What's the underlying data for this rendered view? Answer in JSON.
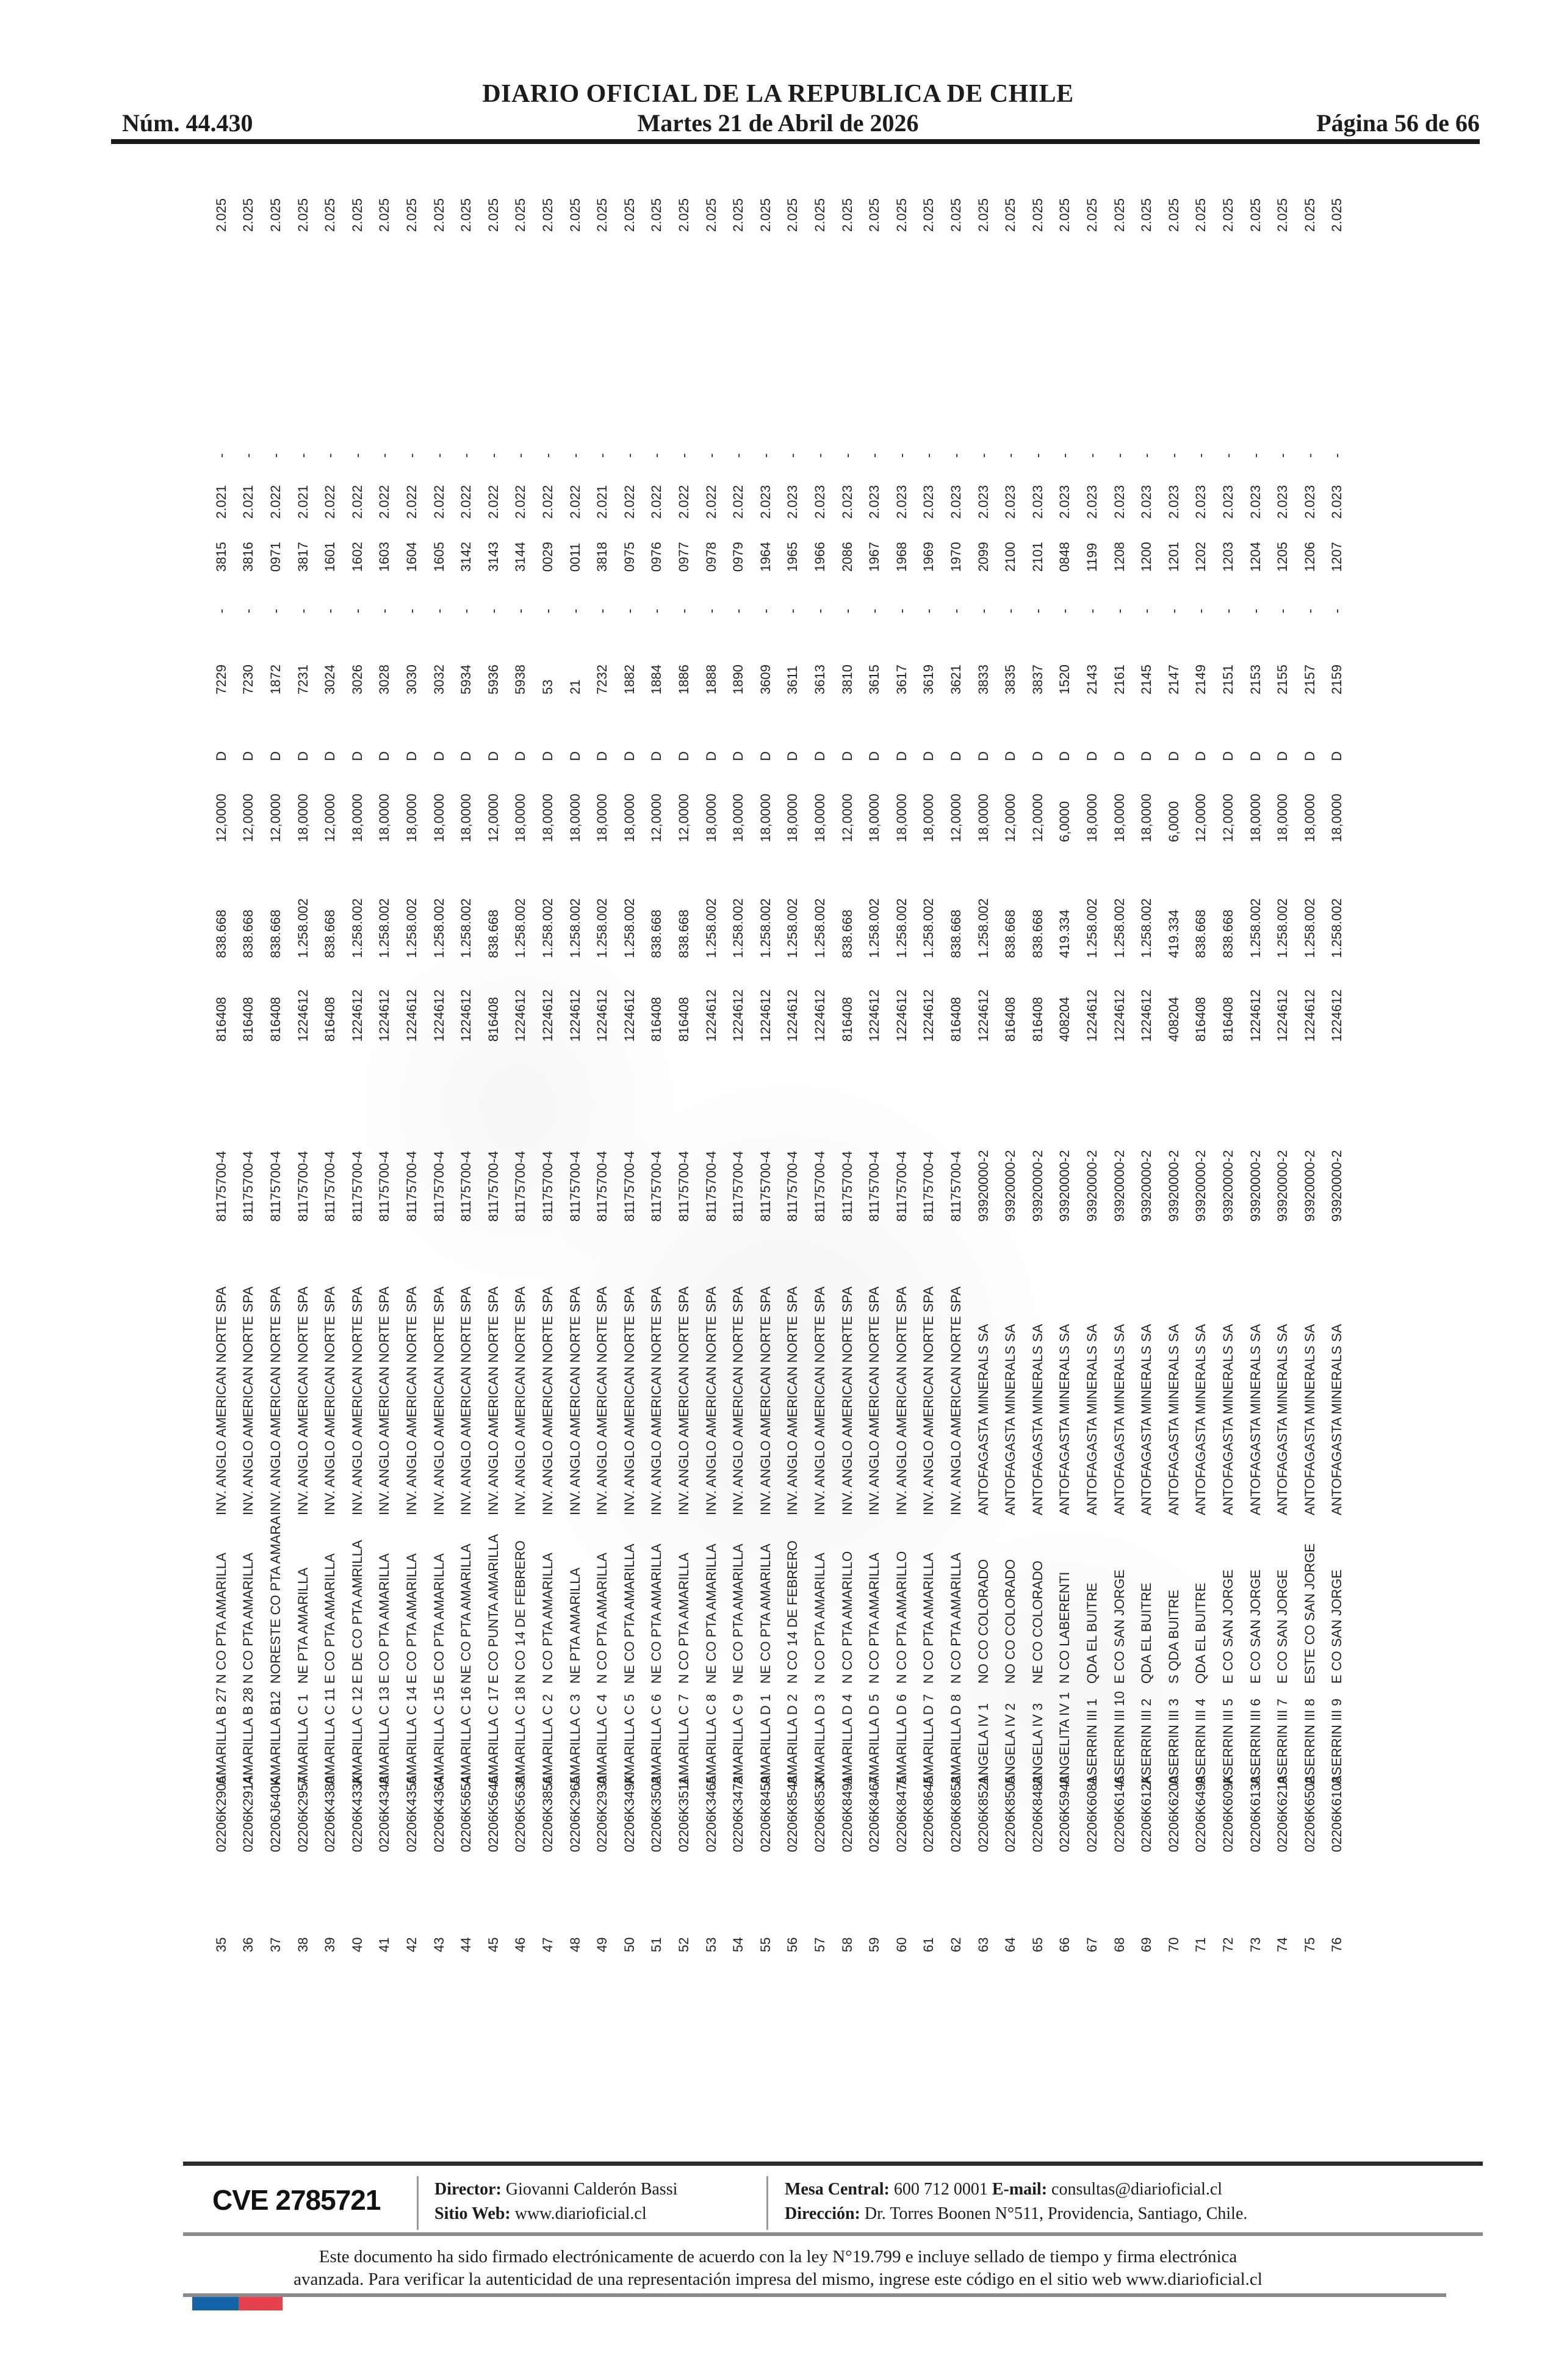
{
  "header": {
    "issue": "Núm. 44.430",
    "title": "DIARIO OFICIAL DE LA REPUBLICA DE CHILE",
    "date": "Martes 21 de Abril de 2026",
    "page": "Página 56 de 66"
  },
  "table": {
    "columns": [
      "n",
      "rol",
      "nombre",
      "ubicacion",
      "titular",
      "rut",
      "num",
      "patente",
      "ha",
      "d",
      "fojas",
      "dash1",
      "numero",
      "anio",
      "dash2",
      "final"
    ],
    "companies": {
      "anglo": {
        "name": "INV. ANGLO AMERICAN NORTE SPA",
        "rut": "81175700-4"
      },
      "antofagasta": {
        "name": "ANTOFAGASTA MINERALS SA",
        "rut": "93920000-2"
      }
    },
    "rows": [
      [
        "35",
        "02206K2906",
        "AMARILLA B 27",
        "N CO PTA AMARILLA",
        "INV. ANGLO AMERICAN NORTE SPA",
        "81175700-4",
        "816408",
        "838.668",
        "12,0000",
        "D",
        "7229",
        "-",
        "3815",
        "2.021",
        "-",
        "2.025"
      ],
      [
        "36",
        "02206K2914",
        "AMARILLA B 28",
        "N CO PTA AMARILLA",
        "INV. ANGLO AMERICAN NORTE SPA",
        "81175700-4",
        "816408",
        "838.668",
        "12,0000",
        "D",
        "7230",
        "-",
        "3816",
        "2.021",
        "-",
        "2.025"
      ],
      [
        "37",
        "02206J640K",
        "AMARILLA B12",
        "NORESTE CO PTA AMARA",
        "INV. ANGLO AMERICAN NORTE SPA",
        "81175700-4",
        "816408",
        "838.668",
        "12,0000",
        "D",
        "1872",
        "-",
        "0971",
        "2.022",
        "-",
        "2.025"
      ],
      [
        "38",
        "02206K2957",
        "AMARILLA C 1",
        "NE PTA AMARILLA",
        "INV. ANGLO AMERICAN NORTE SPA",
        "81175700-4",
        "1224612",
        "1.258.002",
        "18,0000",
        "D",
        "7231",
        "-",
        "3817",
        "2.021",
        "-",
        "2.025"
      ],
      [
        "39",
        "02206K4380",
        "AMARILLA C 11",
        "E CO PTA AMARILLA",
        "INV. ANGLO AMERICAN NORTE SPA",
        "81175700-4",
        "816408",
        "838.668",
        "12,0000",
        "D",
        "3024",
        "-",
        "1601",
        "2.022",
        "-",
        "2.025"
      ],
      [
        "40",
        "02206K433K",
        "AMARILLA C 12",
        "E DE CO PTA AMRILLA",
        "INV. ANGLO AMERICAN NORTE SPA",
        "81175700-4",
        "1224612",
        "1.258.002",
        "18,0000",
        "D",
        "3026",
        "-",
        "1602",
        "2.022",
        "-",
        "2.025"
      ],
      [
        "41",
        "02206K4348",
        "AMARILLA C 13",
        "E CO PTA AMARILLA",
        "INV. ANGLO AMERICAN NORTE SPA",
        "81175700-4",
        "1224612",
        "1.258.002",
        "18,0000",
        "D",
        "3028",
        "-",
        "1603",
        "2.022",
        "-",
        "2.025"
      ],
      [
        "42",
        "02206K4356",
        "AMARILLA C 14",
        "E CO PTA AMARILLA",
        "INV. ANGLO AMERICAN NORTE SPA",
        "81175700-4",
        "1224612",
        "1.258.002",
        "18,0000",
        "D",
        "3030",
        "-",
        "1604",
        "2.022",
        "-",
        "2.025"
      ],
      [
        "43",
        "02206K4364",
        "AMARILLA C 15",
        "E CO PTA AMARILLA",
        "INV. ANGLO AMERICAN NORTE SPA",
        "81175700-4",
        "1224612",
        "1.258.002",
        "18,0000",
        "D",
        "3032",
        "-",
        "1605",
        "2.022",
        "-",
        "2.025"
      ],
      [
        "44",
        "02206K5654",
        "AMARILLA C 16",
        "NE CO PTA AMARILLA",
        "INV. ANGLO AMERICAN NORTE SPA",
        "81175700-4",
        "1224612",
        "1.258.002",
        "18,0000",
        "D",
        "5934",
        "-",
        "3142",
        "2.022",
        "-",
        "2.025"
      ],
      [
        "45",
        "02206K5646",
        "AMARILLA C 17",
        "E CO PUNTA AMARILLA",
        "INV. ANGLO AMERICAN NORTE SPA",
        "81175700-4",
        "816408",
        "838.668",
        "12,0000",
        "D",
        "5936",
        "-",
        "3143",
        "2.022",
        "-",
        "2.025"
      ],
      [
        "46",
        "02206K5638",
        "AMARILLA C 18",
        "N CO 14 DE FEBRERO",
        "INV. ANGLO AMERICAN NORTE SPA",
        "81175700-4",
        "1224612",
        "1.258.002",
        "18,0000",
        "D",
        "5938",
        "-",
        "3144",
        "2.022",
        "-",
        "2.025"
      ],
      [
        "47",
        "02206K3856",
        "AMARILLA C 2",
        "N CO PTA AMARILLA",
        "INV. ANGLO AMERICAN NORTE SPA",
        "81175700-4",
        "1224612",
        "1.258.002",
        "18,0000",
        "D",
        "53",
        "-",
        "0029",
        "2.022",
        "-",
        "2.025"
      ],
      [
        "48",
        "02206K2965",
        "AMARILLA C 3",
        "NE PTA AMARILLA",
        "INV. ANGLO AMERICAN NORTE SPA",
        "81175700-4",
        "1224612",
        "1.258.002",
        "18,0000",
        "D",
        "21",
        "-",
        "0011",
        "2.022",
        "-",
        "2.025"
      ],
      [
        "49",
        "02206K2930",
        "AMARILLA C 4",
        "N CO PTA AMARILLA",
        "INV. ANGLO AMERICAN NORTE SPA",
        "81175700-4",
        "1224612",
        "1.258.002",
        "18,0000",
        "D",
        "7232",
        "-",
        "3818",
        "2.021",
        "-",
        "2.025"
      ],
      [
        "50",
        "02206K349K",
        "AMARILLA C 5",
        "NE CO PTA AMARILLA",
        "INV. ANGLO AMERICAN NORTE SPA",
        "81175700-4",
        "1224612",
        "1.258.002",
        "18,0000",
        "D",
        "1882",
        "-",
        "0975",
        "2.022",
        "-",
        "2.025"
      ],
      [
        "51",
        "02206K3503",
        "AMARILLA C 6",
        "NE CO PTA AMARILLA",
        "INV. ANGLO AMERICAN NORTE SPA",
        "81175700-4",
        "816408",
        "838.668",
        "12,0000",
        "D",
        "1884",
        "-",
        "0976",
        "2.022",
        "-",
        "2.025"
      ],
      [
        "52",
        "02206K3511",
        "AMARILLA C 7",
        "N CO PTA AMARILLA",
        "INV. ANGLO AMERICAN NORTE SPA",
        "81175700-4",
        "816408",
        "838.668",
        "12,0000",
        "D",
        "1886",
        "-",
        "0977",
        "2.022",
        "-",
        "2.025"
      ],
      [
        "53",
        "02206K3465",
        "AMARILLA C 8",
        "NE CO PTA AMARILLA",
        "INV. ANGLO AMERICAN NORTE SPA",
        "81175700-4",
        "1224612",
        "1.258.002",
        "18,0000",
        "D",
        "1888",
        "-",
        "0978",
        "2.022",
        "-",
        "2.025"
      ],
      [
        "54",
        "02206K3473",
        "AMARILLA C 9",
        "NE CO PTA AMARILLA",
        "INV. ANGLO AMERICAN NORTE SPA",
        "81175700-4",
        "1224612",
        "1.258.002",
        "18,0000",
        "D",
        "1890",
        "-",
        "0979",
        "2.022",
        "-",
        "2.025"
      ],
      [
        "55",
        "02206K8459",
        "AMARILLA D 1",
        "NE CO PTA AMARILLA",
        "INV. ANGLO AMERICAN NORTE SPA",
        "81175700-4",
        "1224612",
        "1.258.002",
        "18,0000",
        "D",
        "3609",
        "-",
        "1964",
        "2.023",
        "-",
        "2.025"
      ],
      [
        "56",
        "02206K8548",
        "AMARILLA D 2",
        "N CO 14 DE FEBRERO",
        "INV. ANGLO AMERICAN NORTE SPA",
        "81175700-4",
        "1224612",
        "1.258.002",
        "18,0000",
        "D",
        "3611",
        "-",
        "1965",
        "2.023",
        "-",
        "2.025"
      ],
      [
        "57",
        "02206K853K",
        "AMARILLA D 3",
        "N CO PTA AMARILLA",
        "INV. ANGLO AMERICAN NORTE SPA",
        "81175700-4",
        "1224612",
        "1.258.002",
        "18,0000",
        "D",
        "3613",
        "-",
        "1966",
        "2.023",
        "-",
        "2.025"
      ],
      [
        "58",
        "02206K8491",
        "AMARILLA D 4",
        "N CO PTA AMARILLO",
        "INV. ANGLO AMERICAN NORTE SPA",
        "81175700-4",
        "816408",
        "838.668",
        "12,0000",
        "D",
        "3810",
        "-",
        "2086",
        "2.023",
        "-",
        "2.025"
      ],
      [
        "59",
        "02206K8467",
        "AMARILLA D 5",
        "N CO PTA AMARILLA",
        "INV. ANGLO AMERICAN NORTE SPA",
        "81175700-4",
        "1224612",
        "1.258.002",
        "18,0000",
        "D",
        "3615",
        "-",
        "1967",
        "2.023",
        "-",
        "2.025"
      ],
      [
        "60",
        "02206K8475",
        "AMARILLA D 6",
        "N CO PTA AMARILLO",
        "INV. ANGLO AMERICAN NORTE SPA",
        "81175700-4",
        "1224612",
        "1.258.002",
        "18,0000",
        "D",
        "3617",
        "-",
        "1968",
        "2.023",
        "-",
        "2.025"
      ],
      [
        "61",
        "02206K8645",
        "AMARILLA D 7",
        "N CO PTA AMARILLA",
        "INV. ANGLO AMERICAN NORTE SPA",
        "81175700-4",
        "1224612",
        "1.258.002",
        "18,0000",
        "D",
        "3619",
        "-",
        "1969",
        "2.023",
        "-",
        "2.025"
      ],
      [
        "62",
        "02206K8653",
        "AMARILLA D 8",
        "N CO PTA AMARILLA",
        "INV. ANGLO AMERICAN NORTE SPA",
        "81175700-4",
        "816408",
        "838.668",
        "12,0000",
        "D",
        "3621",
        "-",
        "1970",
        "2.023",
        "-",
        "2.025"
      ],
      [
        "63",
        "02206K8521",
        "ANGELA IV 1",
        "NO CO COLORADO",
        "ANTOFAGASTA MINERALS SA",
        "93920000-2",
        "1224612",
        "1.258.002",
        "18,0000",
        "D",
        "3833",
        "-",
        "2099",
        "2.023",
        "-",
        "2.025"
      ],
      [
        "64",
        "02206K8505",
        "ANGELA IV 2",
        "NO CO COLORADO",
        "ANTOFAGASTA MINERALS SA",
        "93920000-2",
        "816408",
        "838.668",
        "12,0000",
        "D",
        "3835",
        "-",
        "2100",
        "2.023",
        "-",
        "2.025"
      ],
      [
        "65",
        "02206K8483",
        "ANGELA IV 3",
        "NE CO COLORADO",
        "ANTOFAGASTA MINERALS SA",
        "93920000-2",
        "816408",
        "838.668",
        "12,0000",
        "D",
        "3837",
        "-",
        "2101",
        "2.023",
        "-",
        "2.025"
      ],
      [
        "66",
        "02206K5948",
        "ANGELITA IV 1",
        "N CO LABERENTI",
        "ANTOFAGASTA MINERALS SA",
        "93920000-2",
        "408204",
        "419.334",
        "6,0000",
        "D",
        "1520",
        "-",
        "0848",
        "2.023",
        "-",
        "2.025"
      ],
      [
        "67",
        "02206K6081",
        "ASERRIN III 1",
        "QDA EL BUITRE",
        "ANTOFAGASTA MINERALS SA",
        "93920000-2",
        "1224612",
        "1.258.002",
        "18,0000",
        "D",
        "2143",
        "-",
        "1199",
        "2.023",
        "-",
        "2.025"
      ],
      [
        "68",
        "02206K6146",
        "ASERRIN III 10",
        "E CO SAN JORGE",
        "ANTOFAGASTA MINERALS SA",
        "93920000-2",
        "1224612",
        "1.258.002",
        "18,0000",
        "D",
        "2161",
        "-",
        "1208",
        "2.023",
        "-",
        "2.025"
      ],
      [
        "69",
        "02206K612K",
        "ASERRIN III 2",
        "QDA EL BUITRE",
        "ANTOFAGASTA MINERALS SA",
        "93920000-2",
        "1224612",
        "1.258.002",
        "18,0000",
        "D",
        "2145",
        "-",
        "1200",
        "2.023",
        "-",
        "2.025"
      ],
      [
        "70",
        "02206K6200",
        "ASERRIN III 3",
        "S QDA BUITRE",
        "ANTOFAGASTA MINERALS SA",
        "93920000-2",
        "408204",
        "419.334",
        "6,0000",
        "D",
        "2147",
        "-",
        "1201",
        "2.023",
        "-",
        "2.025"
      ],
      [
        "71",
        "02206K6499",
        "ASERRIN III 4",
        "QDA EL BUITRE",
        "ANTOFAGASTA MINERALS SA",
        "93920000-2",
        "816408",
        "838.668",
        "12,0000",
        "D",
        "2149",
        "-",
        "1202",
        "2.023",
        "-",
        "2.025"
      ],
      [
        "72",
        "02206K609K",
        "ASERRIN III 5",
        "E CO SAN JORGE",
        "ANTOFAGASTA MINERALS SA",
        "93920000-2",
        "816408",
        "838.668",
        "12,0000",
        "D",
        "2151",
        "-",
        "1203",
        "2.023",
        "-",
        "2.025"
      ],
      [
        "73",
        "02206K6138",
        "ASERRIN III 6",
        "E CO SAN JORGE",
        "ANTOFAGASTA MINERALS SA",
        "93920000-2",
        "1224612",
        "1.258.002",
        "18,0000",
        "D",
        "2153",
        "-",
        "1204",
        "2.023",
        "-",
        "2.025"
      ],
      [
        "74",
        "02206K6219",
        "ASERRIN III 7",
        "E CO SAN JORGE",
        "ANTOFAGASTA MINERALS SA",
        "93920000-2",
        "1224612",
        "1.258.002",
        "18,0000",
        "D",
        "2155",
        "-",
        "1205",
        "2.023",
        "-",
        "2.025"
      ],
      [
        "75",
        "02206K6502",
        "ASERRIN III 8",
        "ESTE CO SAN JORGE",
        "ANTOFAGASTA MINERALS SA",
        "93920000-2",
        "1224612",
        "1.258.002",
        "18,0000",
        "D",
        "2157",
        "-",
        "1206",
        "2.023",
        "-",
        "2.025"
      ],
      [
        "76",
        "02206K6103",
        "ASERRIN III 9",
        "E CO SAN JORGE",
        "ANTOFAGASTA MINERALS SA",
        "93920000-2",
        "1224612",
        "1.258.002",
        "18,0000",
        "D",
        "2159",
        "-",
        "1207",
        "2.023",
        "-",
        "2.025"
      ]
    ]
  },
  "footer": {
    "cve": "CVE 2785721",
    "director_label": "Director:",
    "director_value": " Giovanni Calderón Bassi",
    "sitio_label": "Sitio Web:",
    "sitio_value": " www.diarioficial.cl",
    "mesa_label": "Mesa Central:",
    "mesa_value": " 600 712 0001  ",
    "email_label": "E-mail:",
    "email_value": " consultas@diarioficial.cl",
    "direccion_label": "Dirección:",
    "direccion_value": " Dr. Torres Boonen N°511, Providencia, Santiago, Chile.",
    "disclaimer_line1": "Este documento ha sido firmado electrónicamente de acuerdo con la ley N°19.799 e incluye sellado de tiempo y firma electrónica",
    "disclaimer_line2": "avanzada. Para verificar la autenticidad de una representación impresa del mismo, ingrese este código en el sitio web www.diarioficial.cl",
    "flag_colors": {
      "blue": "#1465a8",
      "red": "#e8414e"
    }
  }
}
